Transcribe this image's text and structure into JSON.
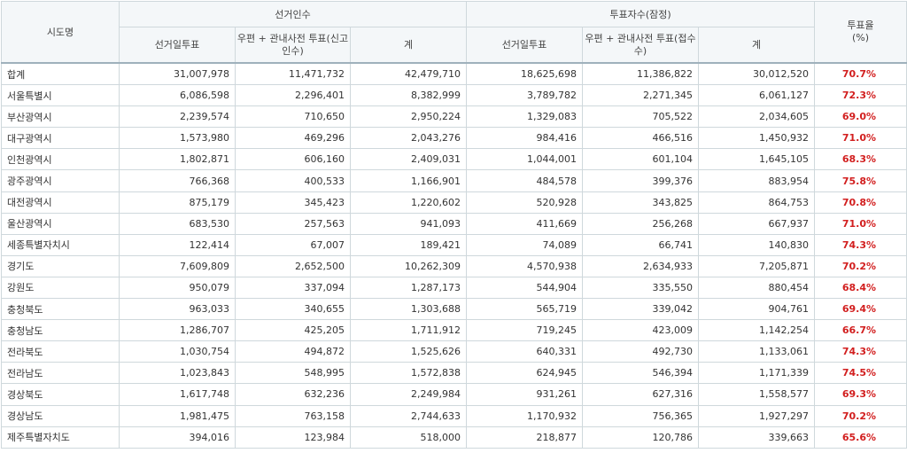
{
  "header": {
    "region": "시도명",
    "electors_group": "선거인수",
    "voters_group": "투표자수(잠정)",
    "turnout": "투표율",
    "turnout_unit": "(%)",
    "election_day": "선거일투표",
    "mail_pre_electors": "우편 + 관내사전 투표(신고인수)",
    "total": "계",
    "election_day_2": "선거일투표",
    "mail_pre_voters": "우편 + 관내사전 투표(접수수)",
    "total_2": "계"
  },
  "rows": [
    {
      "region": "합계",
      "e_day": "31,007,978",
      "e_mail": "11,471,732",
      "e_total": "42,479,710",
      "v_day": "18,625,698",
      "v_mail": "11,386,822",
      "v_total": "30,012,520",
      "rate": "70.7%"
    },
    {
      "region": "서울특별시",
      "e_day": "6,086,598",
      "e_mail": "2,296,401",
      "e_total": "8,382,999",
      "v_day": "3,789,782",
      "v_mail": "2,271,345",
      "v_total": "6,061,127",
      "rate": "72.3%"
    },
    {
      "region": "부산광역시",
      "e_day": "2,239,574",
      "e_mail": "710,650",
      "e_total": "2,950,224",
      "v_day": "1,329,083",
      "v_mail": "705,522",
      "v_total": "2,034,605",
      "rate": "69.0%"
    },
    {
      "region": "대구광역시",
      "e_day": "1,573,980",
      "e_mail": "469,296",
      "e_total": "2,043,276",
      "v_day": "984,416",
      "v_mail": "466,516",
      "v_total": "1,450,932",
      "rate": "71.0%"
    },
    {
      "region": "인천광역시",
      "e_day": "1,802,871",
      "e_mail": "606,160",
      "e_total": "2,409,031",
      "v_day": "1,044,001",
      "v_mail": "601,104",
      "v_total": "1,645,105",
      "rate": "68.3%"
    },
    {
      "region": "광주광역시",
      "e_day": "766,368",
      "e_mail": "400,533",
      "e_total": "1,166,901",
      "v_day": "484,578",
      "v_mail": "399,376",
      "v_total": "883,954",
      "rate": "75.8%"
    },
    {
      "region": "대전광역시",
      "e_day": "875,179",
      "e_mail": "345,423",
      "e_total": "1,220,602",
      "v_day": "520,928",
      "v_mail": "343,825",
      "v_total": "864,753",
      "rate": "70.8%"
    },
    {
      "region": "울산광역시",
      "e_day": "683,530",
      "e_mail": "257,563",
      "e_total": "941,093",
      "v_day": "411,669",
      "v_mail": "256,268",
      "v_total": "667,937",
      "rate": "71.0%"
    },
    {
      "region": "세종특별자치시",
      "e_day": "122,414",
      "e_mail": "67,007",
      "e_total": "189,421",
      "v_day": "74,089",
      "v_mail": "66,741",
      "v_total": "140,830",
      "rate": "74.3%"
    },
    {
      "region": "경기도",
      "e_day": "7,609,809",
      "e_mail": "2,652,500",
      "e_total": "10,262,309",
      "v_day": "4,570,938",
      "v_mail": "2,634,933",
      "v_total": "7,205,871",
      "rate": "70.2%"
    },
    {
      "region": "강원도",
      "e_day": "950,079",
      "e_mail": "337,094",
      "e_total": "1,287,173",
      "v_day": "544,904",
      "v_mail": "335,550",
      "v_total": "880,454",
      "rate": "68.4%"
    },
    {
      "region": "충청북도",
      "e_day": "963,033",
      "e_mail": "340,655",
      "e_total": "1,303,688",
      "v_day": "565,719",
      "v_mail": "339,042",
      "v_total": "904,761",
      "rate": "69.4%"
    },
    {
      "region": "충청남도",
      "e_day": "1,286,707",
      "e_mail": "425,205",
      "e_total": "1,711,912",
      "v_day": "719,245",
      "v_mail": "423,009",
      "v_total": "1,142,254",
      "rate": "66.7%"
    },
    {
      "region": "전라북도",
      "e_day": "1,030,754",
      "e_mail": "494,872",
      "e_total": "1,525,626",
      "v_day": "640,331",
      "v_mail": "492,730",
      "v_total": "1,133,061",
      "rate": "74.3%"
    },
    {
      "region": "전라남도",
      "e_day": "1,023,843",
      "e_mail": "548,995",
      "e_total": "1,572,838",
      "v_day": "624,945",
      "v_mail": "546,394",
      "v_total": "1,171,339",
      "rate": "74.5%"
    },
    {
      "region": "경상북도",
      "e_day": "1,617,748",
      "e_mail": "632,236",
      "e_total": "2,249,984",
      "v_day": "931,261",
      "v_mail": "627,316",
      "v_total": "1,558,577",
      "rate": "69.3%"
    },
    {
      "region": "경상남도",
      "e_day": "1,981,475",
      "e_mail": "763,158",
      "e_total": "2,744,633",
      "v_day": "1,170,932",
      "v_mail": "756,365",
      "v_total": "1,927,297",
      "rate": "70.2%"
    },
    {
      "region": "제주특별자치도",
      "e_day": "394,016",
      "e_mail": "123,984",
      "e_total": "518,000",
      "v_day": "218,877",
      "v_mail": "120,786",
      "v_total": "339,663",
      "rate": "65.6%"
    }
  ],
  "colors": {
    "rate_text": "#d21f1f",
    "header_bg": "#f4f7f9",
    "border": "#cfd8dc"
  }
}
